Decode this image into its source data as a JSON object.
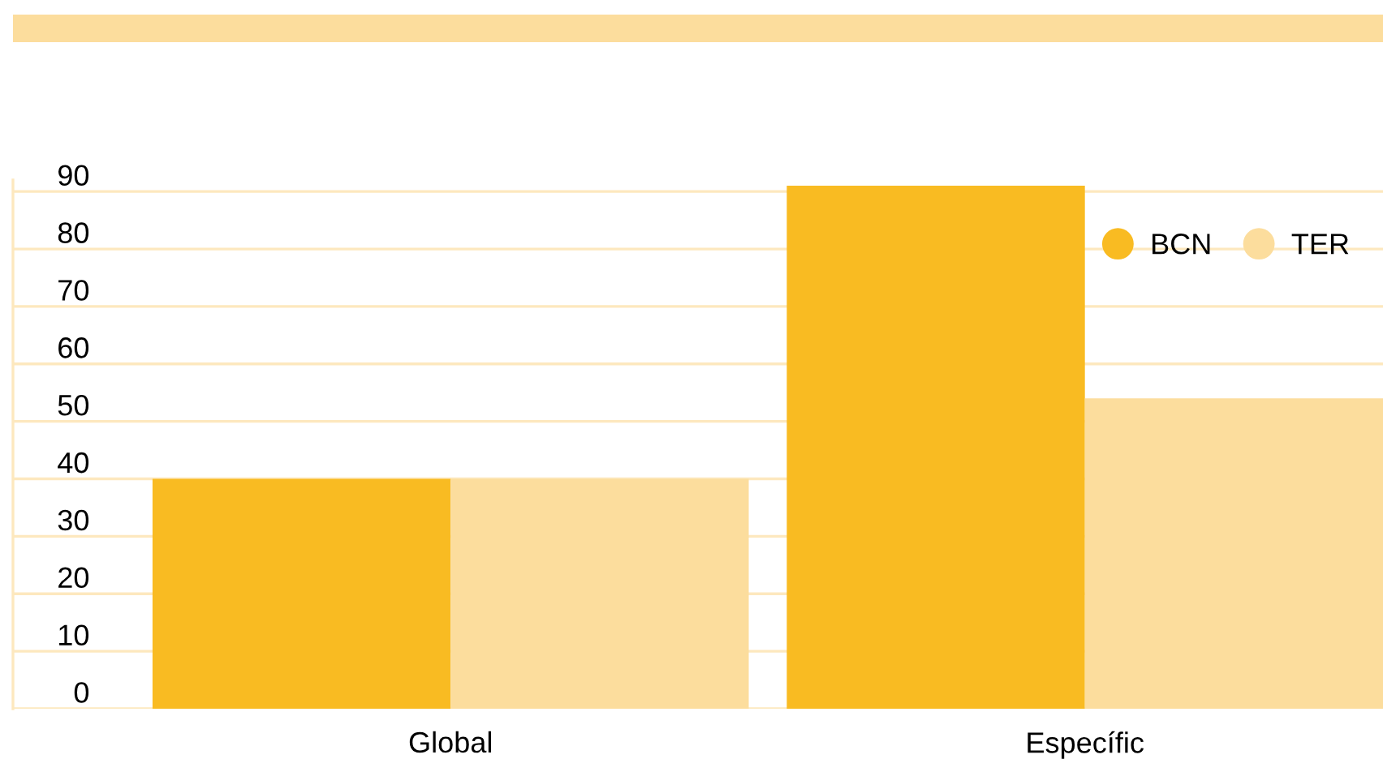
{
  "chart_data": {
    "type": "bar",
    "categories": [
      "Global",
      "Específic"
    ],
    "series": [
      {
        "name": "BCN",
        "color": "#f9bb22",
        "values": [
          40,
          91
        ]
      },
      {
        "name": "TER",
        "color": "#fcdd9d",
        "values": [
          40,
          54
        ]
      }
    ],
    "ylim": [
      0,
      92
    ],
    "yticks": [
      0,
      10,
      20,
      30,
      40,
      50,
      60,
      70,
      80,
      90
    ],
    "grid": "y",
    "legend": "top right"
  }
}
